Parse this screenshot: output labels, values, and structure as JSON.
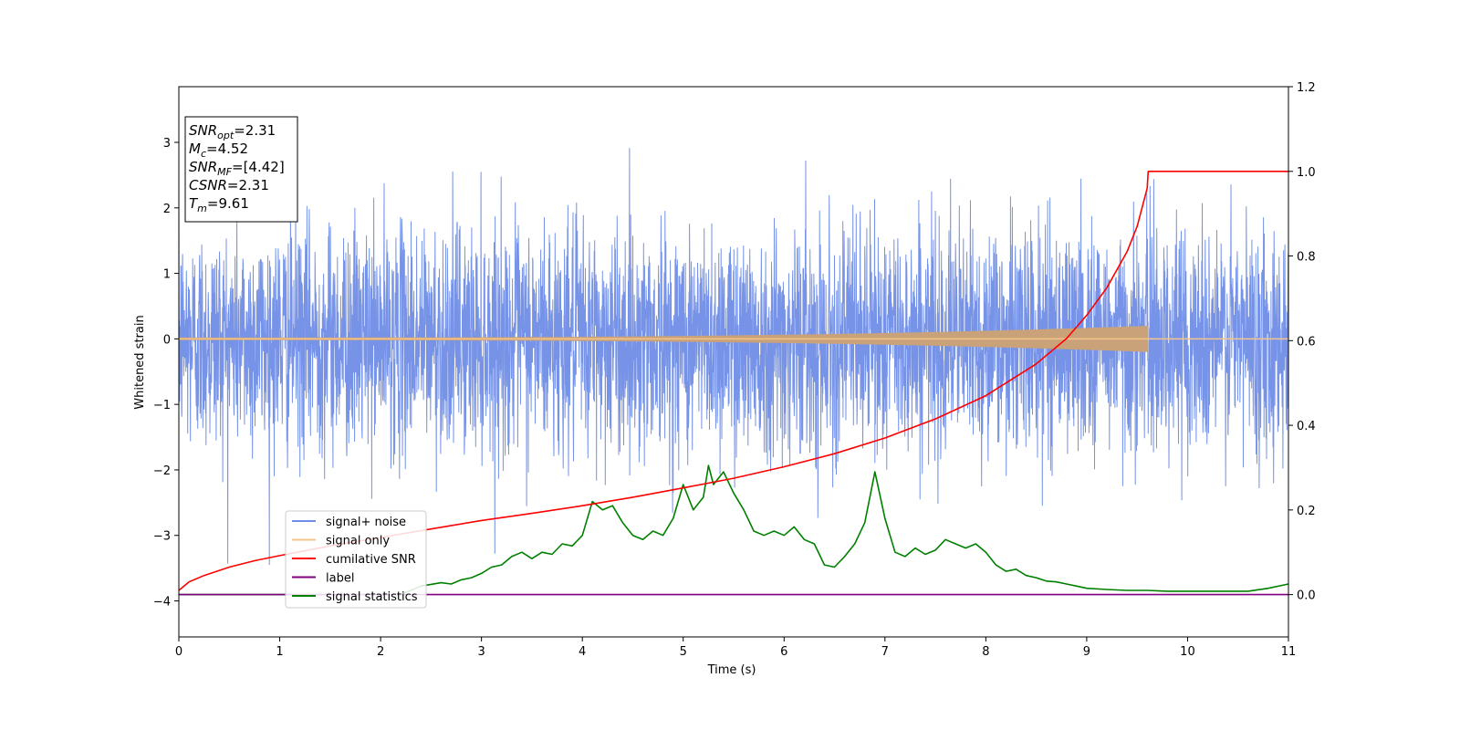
{
  "chart_data": {
    "type": "line",
    "title": "",
    "xlabel": "Time (s)",
    "ylabel": "Whitened strain",
    "y2label": "",
    "xlim": [
      0,
      11
    ],
    "ylim": [
      -4.55,
      3.85
    ],
    "y2lim": [
      -0.1,
      1.2
    ],
    "grid": false,
    "legend_position": "lower-left",
    "x_ticks": [
      0,
      1,
      2,
      3,
      4,
      5,
      6,
      7,
      8,
      9,
      10,
      11
    ],
    "y_ticks": [
      -4,
      -3,
      -2,
      -1,
      0,
      1,
      2,
      3
    ],
    "y2_ticks": [
      0.0,
      0.2,
      0.4,
      0.6,
      0.8,
      1.0,
      1.2
    ],
    "x_tick_labels": [
      "0",
      "1",
      "2",
      "3",
      "4",
      "5",
      "6",
      "7",
      "8",
      "9",
      "10",
      "11"
    ],
    "y_tick_labels": [
      "−4",
      "−3",
      "−2",
      "−1",
      "0",
      "1",
      "2",
      "3"
    ],
    "y2_tick_labels": [
      "0.0",
      "0.2",
      "0.4",
      "0.6",
      "0.8",
      "1.0",
      "1.2"
    ],
    "info_box": [
      {
        "main": "SNR",
        "sub": "opt",
        "value": "=2.31"
      },
      {
        "main": "M",
        "sub": "c",
        "value": "=4.52"
      },
      {
        "main": "SNR",
        "sub": "MF",
        "value": "=[4.42]"
      },
      {
        "main": "CSNR",
        "sub": "",
        "value": "=2.31"
      },
      {
        "main": "T",
        "sub": "m",
        "value": "=9.61"
      }
    ],
    "series": [
      {
        "name": "signal+ noise",
        "color": "#6f8de6",
        "axis": "left",
        "kind": "noise",
        "noise_sigma": 0.85,
        "noise_max_abs": 3.45,
        "x_range": [
          0,
          11
        ]
      },
      {
        "name": "signal only",
        "color": "#f5c48a",
        "axis": "left",
        "kind": "chirp",
        "amplitude_start": 0.02,
        "amplitude_end": 0.2,
        "end_time": 9.61,
        "x_range": [
          0,
          11
        ]
      },
      {
        "name": "cumilative SNR",
        "color": "#ff0000",
        "axis": "right",
        "kind": "line",
        "x": [
          0,
          0.1,
          0.25,
          0.5,
          0.75,
          1,
          1.5,
          2,
          2.5,
          3,
          3.5,
          4,
          4.5,
          5,
          5.5,
          6,
          6.5,
          7,
          7.5,
          8,
          8.5,
          8.8,
          9,
          9.2,
          9.4,
          9.5,
          9.6,
          9.61,
          11
        ],
        "y": [
          0.01,
          0.03,
          0.045,
          0.065,
          0.08,
          0.092,
          0.115,
          0.135,
          0.155,
          0.175,
          0.192,
          0.21,
          0.23,
          0.252,
          0.275,
          0.302,
          0.333,
          0.37,
          0.415,
          0.47,
          0.545,
          0.605,
          0.66,
          0.725,
          0.81,
          0.87,
          0.96,
          1.0,
          1.0
        ]
      },
      {
        "name": "label",
        "color": "#800080",
        "axis": "right",
        "kind": "line",
        "x": [
          0,
          11
        ],
        "y": [
          0,
          0
        ]
      },
      {
        "name": "signal statistics",
        "color": "#008000",
        "axis": "right",
        "kind": "line",
        "x": [
          0,
          2.2,
          2.4,
          2.6,
          2.7,
          2.8,
          2.9,
          3.0,
          3.1,
          3.2,
          3.3,
          3.4,
          3.5,
          3.6,
          3.7,
          3.8,
          3.9,
          4.0,
          4.1,
          4.2,
          4.3,
          4.4,
          4.5,
          4.6,
          4.7,
          4.8,
          4.9,
          5.0,
          5.1,
          5.2,
          5.25,
          5.3,
          5.4,
          5.5,
          5.6,
          5.7,
          5.8,
          5.9,
          6.0,
          6.1,
          6.2,
          6.3,
          6.4,
          6.5,
          6.6,
          6.7,
          6.8,
          6.9,
          7.0,
          7.1,
          7.2,
          7.3,
          7.4,
          7.5,
          7.6,
          7.7,
          7.8,
          7.9,
          8.0,
          8.1,
          8.2,
          8.3,
          8.4,
          8.5,
          8.6,
          8.7,
          8.8,
          8.9,
          9.0,
          9.2,
          9.4,
          9.6,
          9.8,
          10.0,
          10.2,
          10.4,
          10.6,
          10.8,
          11.0
        ],
        "y": [
          0.0,
          0.0,
          0.02,
          0.028,
          0.025,
          0.035,
          0.04,
          0.05,
          0.065,
          0.07,
          0.09,
          0.1,
          0.085,
          0.1,
          0.095,
          0.12,
          0.115,
          0.14,
          0.22,
          0.2,
          0.21,
          0.17,
          0.14,
          0.13,
          0.15,
          0.14,
          0.18,
          0.26,
          0.2,
          0.23,
          0.305,
          0.26,
          0.29,
          0.24,
          0.2,
          0.15,
          0.14,
          0.15,
          0.14,
          0.16,
          0.13,
          0.12,
          0.07,
          0.065,
          0.09,
          0.12,
          0.17,
          0.29,
          0.18,
          0.1,
          0.09,
          0.11,
          0.095,
          0.105,
          0.13,
          0.12,
          0.11,
          0.12,
          0.1,
          0.07,
          0.055,
          0.06,
          0.045,
          0.04,
          0.032,
          0.03,
          0.025,
          0.02,
          0.015,
          0.012,
          0.01,
          0.01,
          0.008,
          0.008,
          0.008,
          0.008,
          0.008,
          0.015,
          0.025
        ]
      }
    ]
  }
}
